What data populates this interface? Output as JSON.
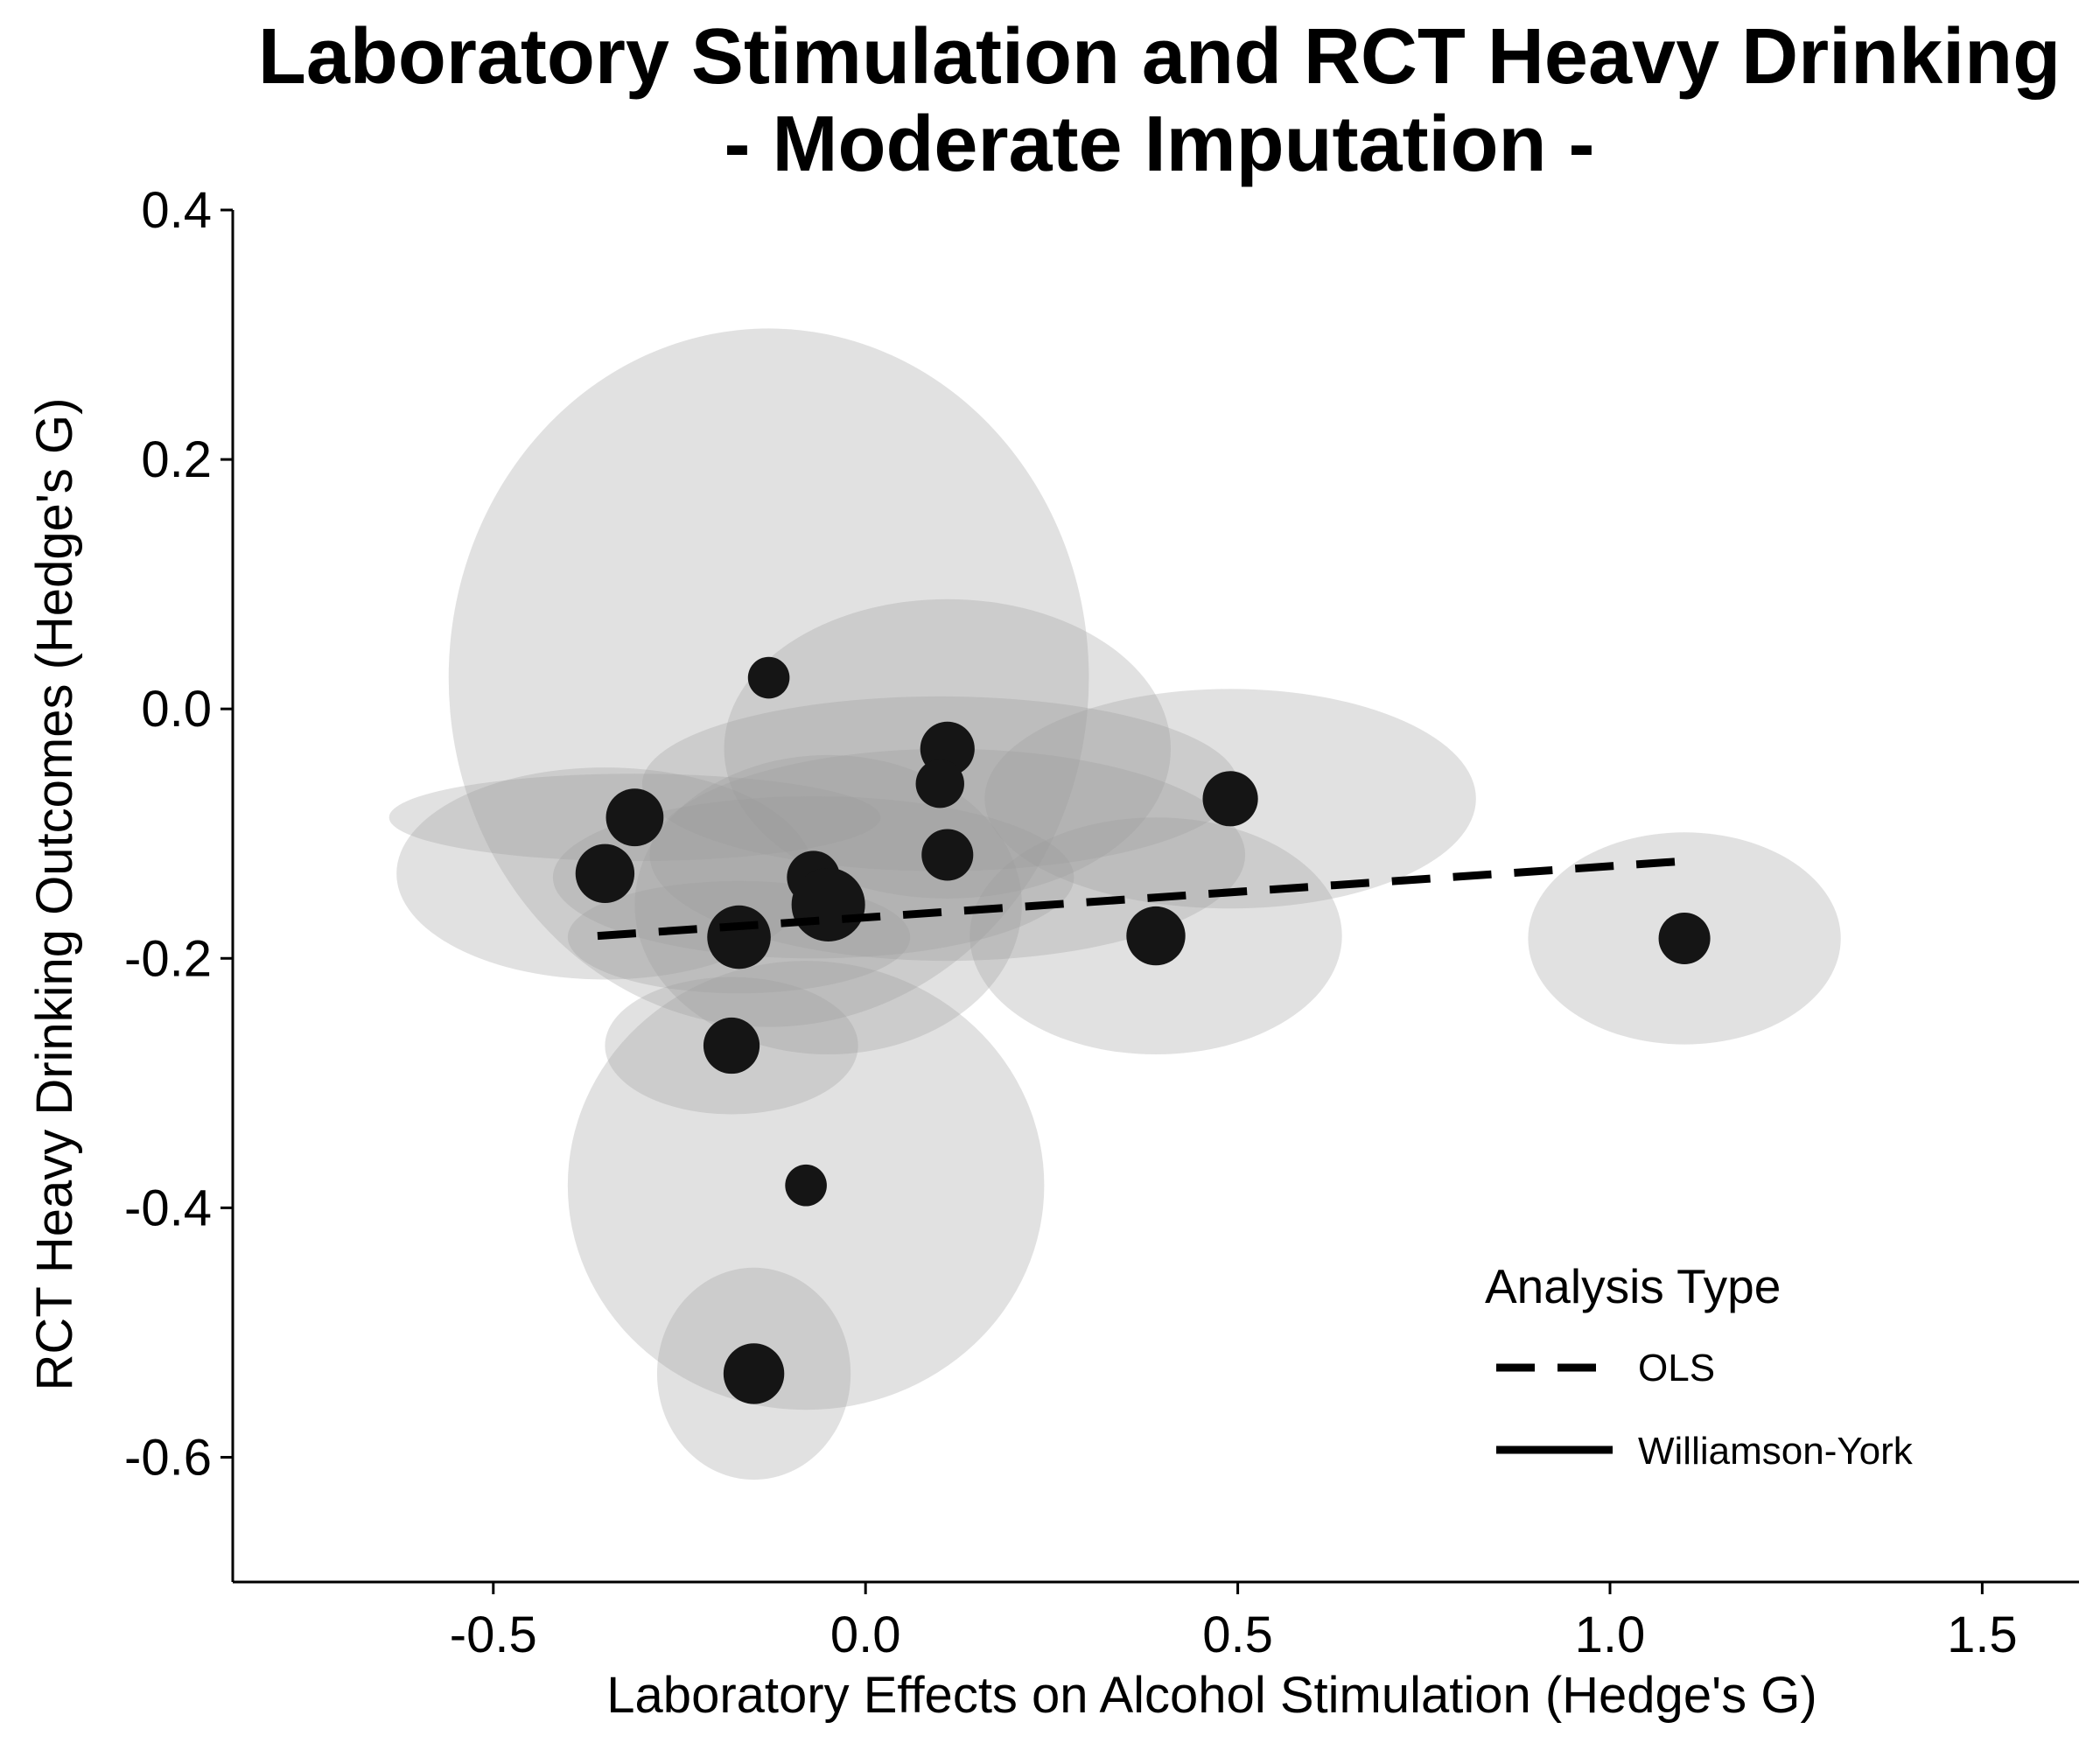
{
  "chart_data": {
    "type": "scatter",
    "title": "Laboratory Stimulation and RCT Heavy Drinking",
    "subtitle": "- Moderate Imputation -",
    "xlabel": "Laboratory Effects on Alcohol Stimulation (Hedge's G)",
    "ylabel": "RCT Heavy Drinking Outcomes (Hedge's G)",
    "xlim": [
      -0.85,
      1.63
    ],
    "ylim": [
      -0.7,
      0.4
    ],
    "x_ticks": [
      {
        "value": -0.5,
        "label": "-0.5"
      },
      {
        "value": 0.0,
        "label": "0.0"
      },
      {
        "value": 0.5,
        "label": "0.5"
      },
      {
        "value": 1.0,
        "label": "1.0"
      },
      {
        "value": 1.5,
        "label": "1.5"
      }
    ],
    "y_ticks": [
      {
        "value": -0.6,
        "label": "-0.6"
      },
      {
        "value": -0.4,
        "label": "-0.4"
      },
      {
        "value": -0.2,
        "label": "-0.2"
      },
      {
        "value": 0.0,
        "label": "0.0"
      },
      {
        "value": 0.2,
        "label": "0.2"
      },
      {
        "value": 0.4,
        "label": "0.4"
      }
    ],
    "grid": false,
    "legend_position": "bottom-right",
    "legend_title": "Analysis Type",
    "legend": [
      {
        "label": "OLS",
        "linetype": "dashed"
      },
      {
        "label": "Williamson-York",
        "linetype": "solid"
      }
    ],
    "points": [
      {
        "x": -0.13,
        "y": 0.025,
        "size": 0.3,
        "ex": 0.43,
        "ey": 0.28
      },
      {
        "x": 0.11,
        "y": -0.032,
        "size": 0.58,
        "ex": 0.3,
        "ey": 0.12
      },
      {
        "x": 0.1,
        "y": -0.06,
        "size": 0.45,
        "ex": 0.4,
        "ey": 0.07
      },
      {
        "x": 0.49,
        "y": -0.072,
        "size": 0.6,
        "ex": 0.33,
        "ey": 0.088
      },
      {
        "x": -0.31,
        "y": -0.087,
        "size": 0.65,
        "ex": 0.33,
        "ey": 0.035
      },
      {
        "x": 0.11,
        "y": -0.117,
        "size": 0.52,
        "ex": 0.4,
        "ey": 0.085
      },
      {
        "x": -0.35,
        "y": -0.132,
        "size": 0.68,
        "ex": 0.28,
        "ey": 0.085
      },
      {
        "x": -0.07,
        "y": -0.135,
        "size": 0.55,
        "ex": 0.35,
        "ey": 0.065
      },
      {
        "x": -0.05,
        "y": -0.157,
        "size": 1.0,
        "ex": 0.26,
        "ey": 0.12
      },
      {
        "x": -0.17,
        "y": -0.183,
        "size": 0.78,
        "ex": 0.23,
        "ey": 0.045
      },
      {
        "x": 0.39,
        "y": -0.182,
        "size": 0.68,
        "ex": 0.25,
        "ey": 0.095
      },
      {
        "x": 1.1,
        "y": -0.184,
        "size": 0.52,
        "ex": 0.21,
        "ey": 0.085
      },
      {
        "x": -0.18,
        "y": -0.27,
        "size": 0.62,
        "ex": 0.17,
        "ey": 0.055
      },
      {
        "x": -0.08,
        "y": -0.382,
        "size": 0.3,
        "ex": 0.32,
        "ey": 0.18
      },
      {
        "x": -0.15,
        "y": -0.533,
        "size": 0.72,
        "ex": 0.13,
        "ey": 0.085
      }
    ],
    "series": [
      {
        "name": "OLS",
        "linetype": "dashed",
        "x": [
          -0.36,
          1.1
        ],
        "y": [
          -0.182,
          -0.122
        ]
      }
    ],
    "colors": {
      "point": "#151515",
      "ellipse_fill": "#9b9b9b",
      "axis": "#000000",
      "background": "#ffffff"
    }
  }
}
